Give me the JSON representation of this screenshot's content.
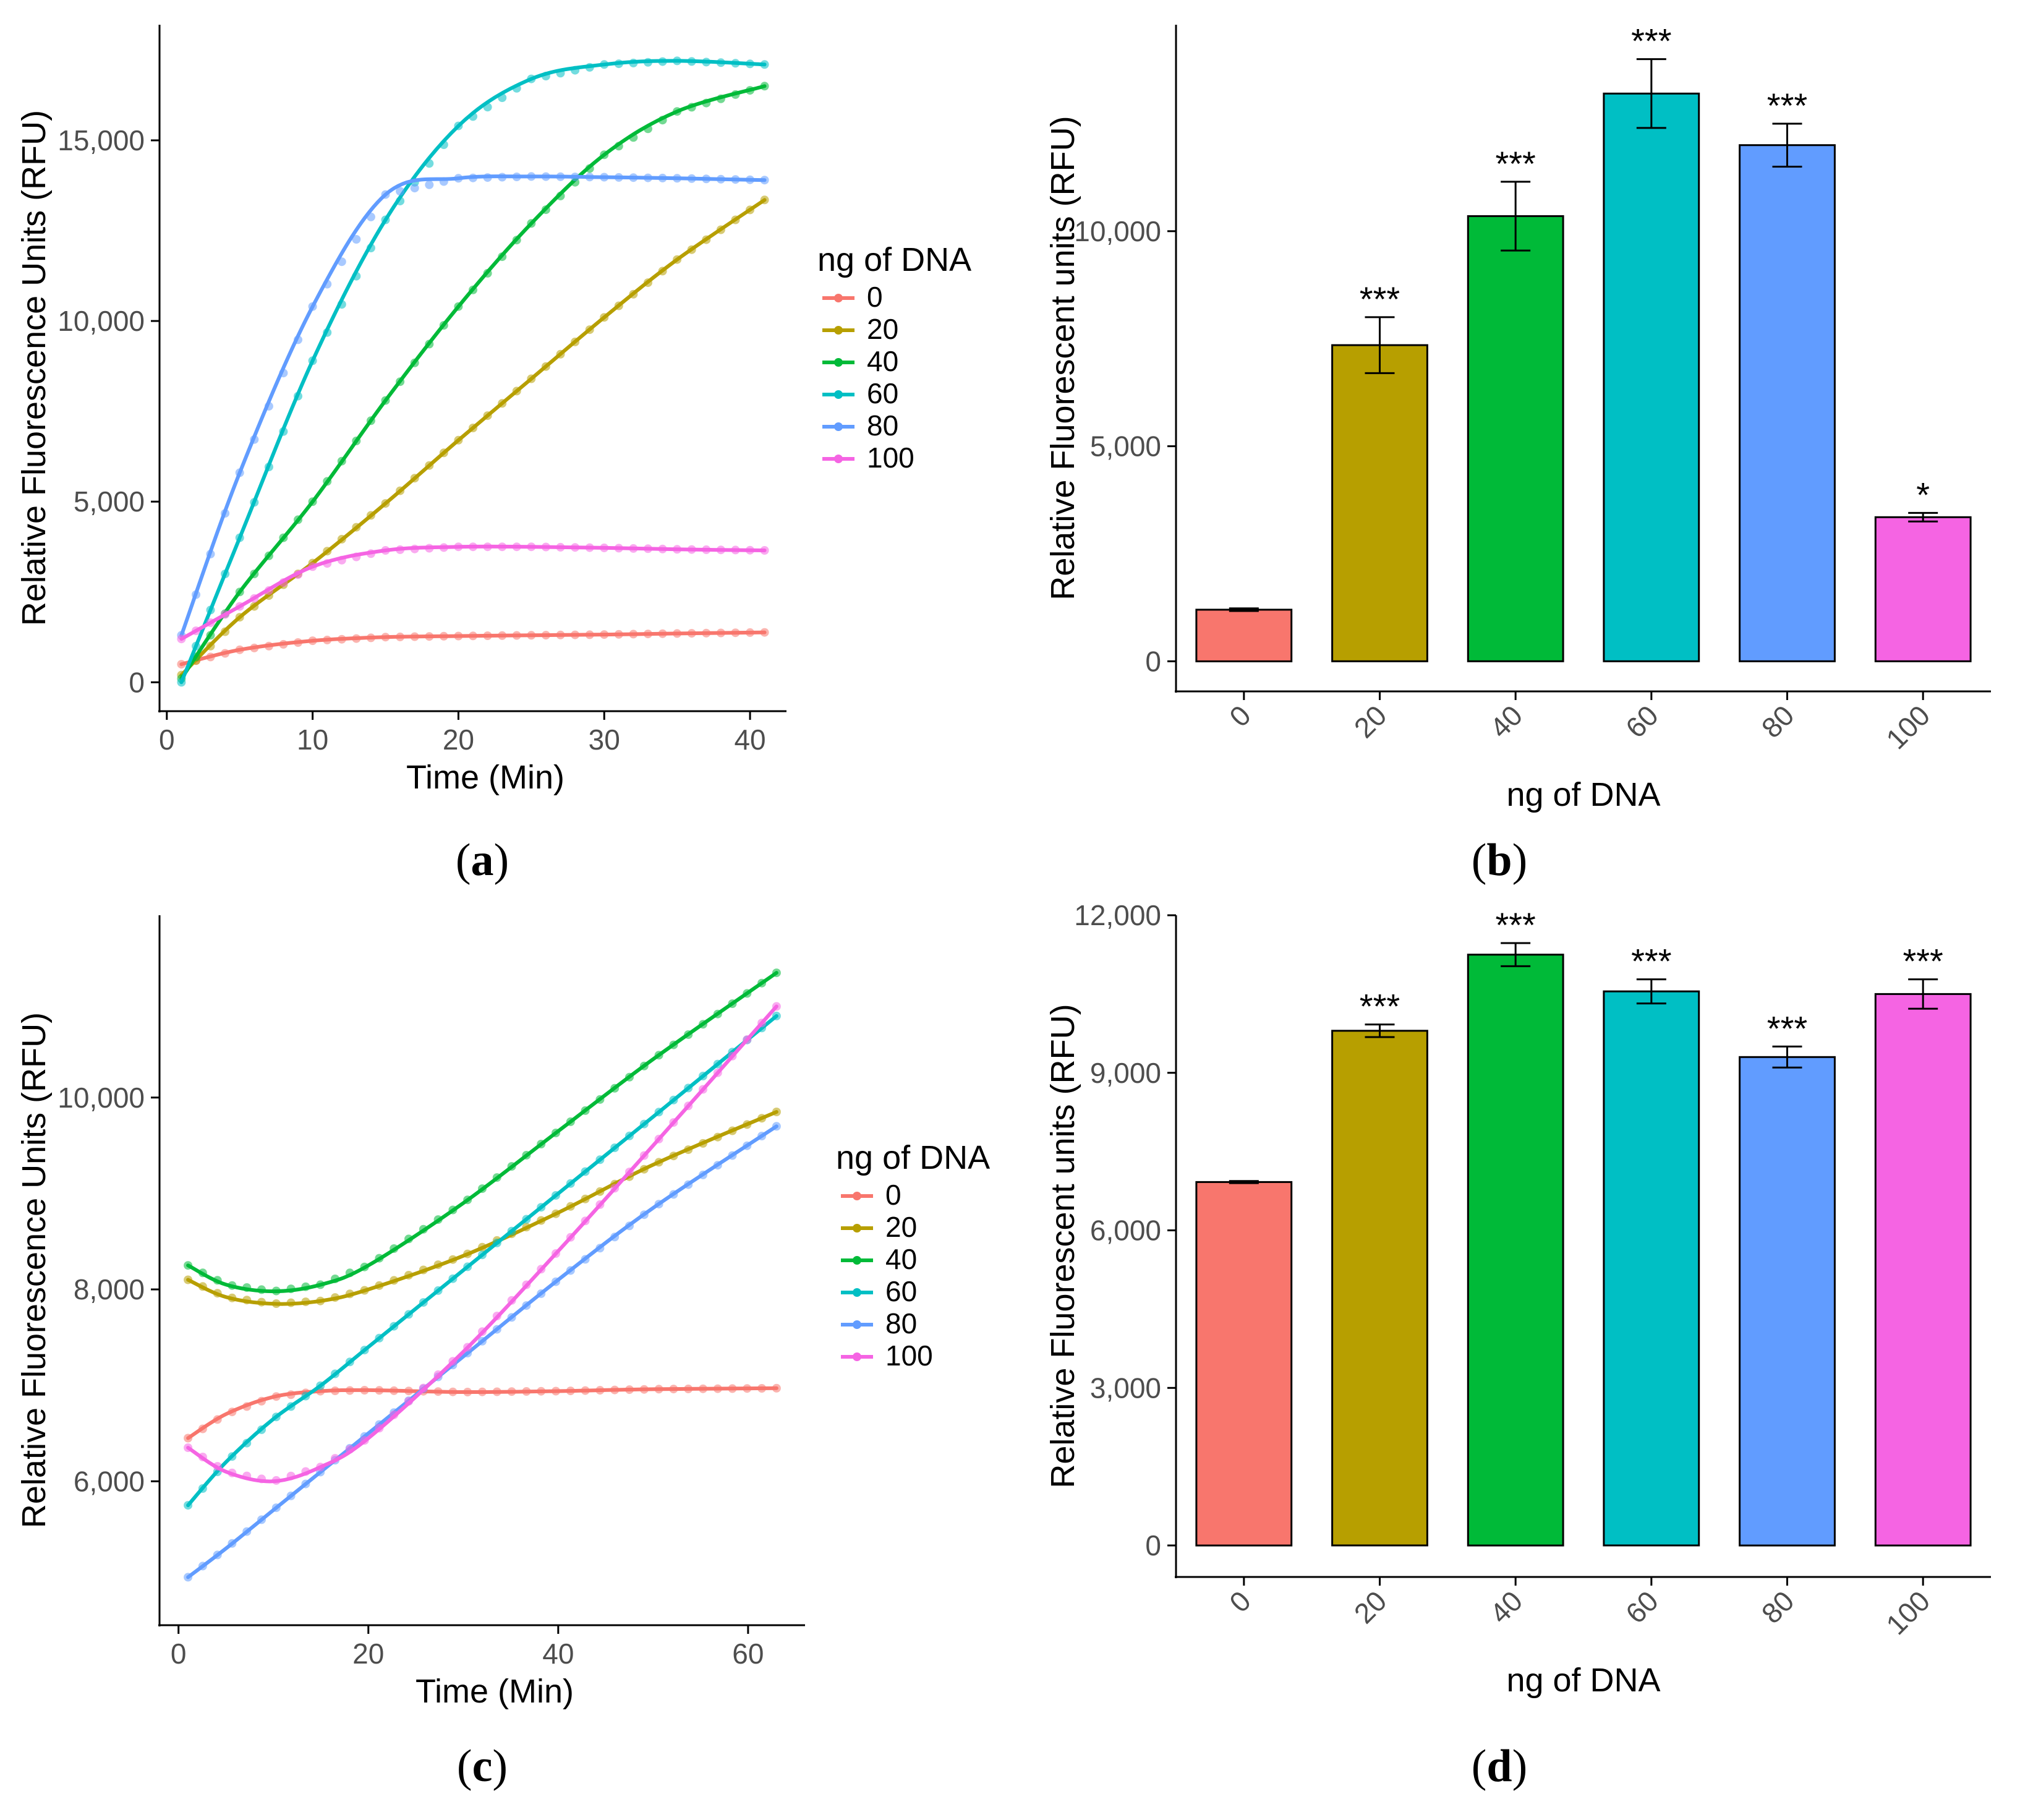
{
  "colors": {
    "0": "#F8766D",
    "20": "#B79F00",
    "40": "#00BA38",
    "60": "#00BFC4",
    "80": "#619CFF",
    "100": "#F564E3"
  },
  "chart_data": [
    {
      "id": "a",
      "type": "line",
      "caption_letter": "a",
      "xlabel": "Time (Min)",
      "ylabel": "Relative Fluorescence Units (RFU)",
      "xlim": [
        -0.5,
        42.5
      ],
      "ylim": [
        -800,
        18200
      ],
      "xticks": [
        0,
        10,
        20,
        30,
        40
      ],
      "xtick_labels": [
        "0",
        "10",
        "20",
        "30",
        "40"
      ],
      "yticks": [
        0,
        5000,
        10000,
        15000
      ],
      "ytick_labels": [
        "0",
        "5,000",
        "10,000",
        "15,000"
      ],
      "legend_title": "ng of DNA",
      "series": [
        {
          "name": "0",
          "x": [
            1,
            5,
            10,
            15,
            20,
            25,
            30,
            35,
            41
          ],
          "values": [
            500,
            900,
            1150,
            1250,
            1280,
            1300,
            1320,
            1350,
            1380
          ]
        },
        {
          "name": "20",
          "x": [
            1,
            5,
            10,
            15,
            20,
            25,
            30,
            35,
            41
          ],
          "values": [
            200,
            1800,
            3300,
            4950,
            6700,
            8400,
            10100,
            11700,
            13350
          ]
        },
        {
          "name": "40",
          "x": [
            1,
            5,
            10,
            15,
            20,
            25,
            30,
            35,
            41
          ],
          "values": [
            100,
            2500,
            5000,
            7800,
            10400,
            12700,
            14600,
            15800,
            16500
          ]
        },
        {
          "name": "60",
          "x": [
            1,
            5,
            10,
            15,
            20,
            25,
            30,
            35,
            41
          ],
          "values": [
            0,
            4000,
            8900,
            12800,
            15400,
            16700,
            17100,
            17200,
            17100
          ]
        },
        {
          "name": "80",
          "x": [
            1,
            5,
            10,
            15,
            20,
            25,
            30,
            35,
            41
          ],
          "values": [
            1300,
            5800,
            10400,
            13500,
            13950,
            14000,
            13980,
            13950,
            13900
          ]
        },
        {
          "name": "100",
          "x": [
            1,
            5,
            10,
            15,
            20,
            25,
            30,
            35,
            41
          ],
          "values": [
            1200,
            2100,
            3200,
            3650,
            3750,
            3750,
            3720,
            3680,
            3650
          ]
        }
      ]
    },
    {
      "id": "b",
      "type": "bar",
      "caption_letter": "b",
      "xlabel": "ng of DNA",
      "ylabel": "Relative Fluorescent units (RFU)",
      "ylim": [
        -700,
        14800
      ],
      "yticks": [
        0,
        5000,
        10000
      ],
      "ytick_labels": [
        "0",
        "5,000",
        "10,000"
      ],
      "categories": [
        "0",
        "20",
        "40",
        "60",
        "80",
        "100"
      ],
      "values": [
        1200,
        7350,
        10350,
        13200,
        12000,
        3350
      ],
      "errors": [
        30,
        650,
        800,
        800,
        500,
        100
      ],
      "significance": [
        "",
        "***",
        "***",
        "***",
        "***",
        "*"
      ]
    },
    {
      "id": "c",
      "type": "line",
      "caption_letter": "c",
      "xlabel": "Time (Min)",
      "ylabel": "Relative Fluorescence Units (RFU)",
      "xlim": [
        -2,
        66
      ],
      "ylim": [
        4500,
        11900
      ],
      "xticks": [
        0,
        20,
        40,
        60
      ],
      "xtick_labels": [
        "0",
        "20",
        "40",
        "60"
      ],
      "yticks": [
        6000,
        8000,
        10000
      ],
      "ytick_labels": [
        "6,000",
        "8,000",
        "10,000"
      ],
      "legend_title": "ng of DNA",
      "series": [
        {
          "name": "0",
          "x": [
            1,
            5,
            10,
            15,
            20,
            30,
            40,
            50,
            63
          ],
          "values": [
            6450,
            6700,
            6880,
            6940,
            6950,
            6930,
            6940,
            6960,
            6970
          ]
        },
        {
          "name": "20",
          "x": [
            1,
            5,
            10,
            15,
            20,
            30,
            40,
            50,
            63
          ],
          "values": [
            8100,
            7920,
            7850,
            7880,
            8000,
            8350,
            8800,
            9300,
            9850
          ]
        },
        {
          "name": "40",
          "x": [
            1,
            5,
            10,
            15,
            20,
            30,
            40,
            50,
            63
          ],
          "values": [
            8250,
            8050,
            7980,
            8050,
            8250,
            8900,
            9650,
            10400,
            11300
          ]
        },
        {
          "name": "60",
          "x": [
            1,
            5,
            10,
            15,
            20,
            30,
            40,
            50,
            63
          ],
          "values": [
            5750,
            6200,
            6650,
            7000,
            7400,
            8200,
            9000,
            9800,
            10850
          ]
        },
        {
          "name": "80",
          "x": [
            1,
            5,
            10,
            15,
            20,
            30,
            40,
            50,
            63
          ],
          "values": [
            5000,
            5300,
            5700,
            6100,
            6500,
            7300,
            8100,
            8850,
            9700
          ]
        },
        {
          "name": "100",
          "x": [
            1,
            5,
            10,
            15,
            20,
            30,
            40,
            50,
            63
          ],
          "values": [
            6350,
            6100,
            6000,
            6150,
            6450,
            7350,
            8400,
            9500,
            10950
          ]
        }
      ]
    },
    {
      "id": "d",
      "type": "bar",
      "caption_letter": "d",
      "xlabel": "ng of DNA",
      "ylabel": "Relative Fluorescent units (RFU)",
      "ylim": [
        -600,
        12000
      ],
      "yticks": [
        0,
        3000,
        6000,
        9000,
        12000
      ],
      "ytick_labels": [
        "0",
        "3,000",
        "6,000",
        "9,000",
        "12,000"
      ],
      "categories": [
        "0",
        "20",
        "40",
        "60",
        "80",
        "100"
      ],
      "values": [
        6920,
        9800,
        11250,
        10550,
        9300,
        10500
      ],
      "errors": [
        20,
        120,
        220,
        230,
        200,
        280
      ],
      "significance": [
        "",
        "***",
        "***",
        "***",
        "***",
        "***"
      ]
    }
  ]
}
